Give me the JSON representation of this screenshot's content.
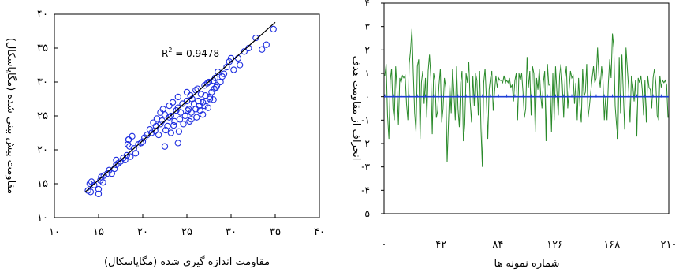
{
  "chart_data": [
    {
      "type": "scatter",
      "xlabel": "مقاومت اندازه گیری شده (مگاپاسکال)",
      "ylabel": "مقاومت پیش بینی شده (مگاپاسکال)",
      "xlim": [
        10,
        40
      ],
      "ylim": [
        10,
        40
      ],
      "x_ticks": [
        10,
        15,
        20,
        25,
        30,
        35,
        40
      ],
      "y_ticks": [
        10,
        15,
        20,
        25,
        30,
        35,
        40
      ],
      "x_tick_labels": [
        "۱۰",
        "۱۵",
        "۲۰",
        "۲۵",
        "۳۰",
        "۳۵",
        "۴۰"
      ],
      "y_tick_labels": [
        "۱۰",
        "۱۵",
        "۲۰",
        "۲۵",
        "۳۰",
        "۳۵",
        "۴۰"
      ],
      "annotation": {
        "r2_label": "R",
        "r2_sup": "2",
        "r2_value": " = 0.9478"
      },
      "fit_line": {
        "x": [
          13.5,
          35
        ],
        "y": [
          13.8,
          38.8
        ]
      },
      "points": {
        "x": [
          13.8,
          14.0,
          14.2,
          14.5,
          14.1,
          15.0,
          15.2,
          15.3,
          15.6,
          15.5,
          16.0,
          16.2,
          16.5,
          16.8,
          17.0,
          17.2,
          17.5,
          17.8,
          18.0,
          18.2,
          18.3,
          18.4,
          18.5,
          18.6,
          18.8,
          19.0,
          19.2,
          19.5,
          19.8,
          20.0,
          20.2,
          20.5,
          20.8,
          21.0,
          21.2,
          21.4,
          21.5,
          21.6,
          21.8,
          22.0,
          22.0,
          22.2,
          22.3,
          22.5,
          22.6,
          22.8,
          23.0,
          23.0,
          23.2,
          23.4,
          23.5,
          23.6,
          23.8,
          24.0,
          24.0,
          24.1,
          24.2,
          24.3,
          24.5,
          24.6,
          24.8,
          25.0,
          25.0,
          25.1,
          25.2,
          25.3,
          25.4,
          25.5,
          25.6,
          25.8,
          26.0,
          26.0,
          26.1,
          26.2,
          26.3,
          26.4,
          26.5,
          26.6,
          26.8,
          27.0,
          27.0,
          27.1,
          27.2,
          27.3,
          27.4,
          27.5,
          27.6,
          27.8,
          28.0,
          28.0,
          28.1,
          28.2,
          28.3,
          28.5,
          28.8,
          29.0,
          29.2,
          29.5,
          29.8,
          30.0,
          30.3,
          30.8,
          31.0,
          31.5,
          32.0,
          32.8,
          33.5,
          34.0,
          34.8,
          15.0,
          22.5,
          23.2,
          24.0,
          25.5,
          26.8,
          27.6,
          28.4,
          18.4,
          17.0
        ],
        "y": [
          14.0,
          15.0,
          15.3,
          14.8,
          13.8,
          13.5,
          15.5,
          16.0,
          16.2,
          15.2,
          16.5,
          17.0,
          16.5,
          17.2,
          17.8,
          18.0,
          18.3,
          18.8,
          18.5,
          19.2,
          20.8,
          21.5,
          20.5,
          19.0,
          22.0,
          20.2,
          19.5,
          20.8,
          21.0,
          21.2,
          21.8,
          22.2,
          23.0,
          22.5,
          24.0,
          22.8,
          23.5,
          24.6,
          22.2,
          25.5,
          23.8,
          24.3,
          26.0,
          25.2,
          22.9,
          23.5,
          24.8,
          26.5,
          25.0,
          27.0,
          23.6,
          24.2,
          25.8,
          26.2,
          27.8,
          22.7,
          24.5,
          25.5,
          26.8,
          23.8,
          25.0,
          27.2,
          28.5,
          25.8,
          26.0,
          24.2,
          28.0,
          25.5,
          27.5,
          26.8,
          28.8,
          26.0,
          24.8,
          29.0,
          27.2,
          26.5,
          25.8,
          28.2,
          27.0,
          29.5,
          26.5,
          28.0,
          27.2,
          29.8,
          26.2,
          30.0,
          27.8,
          28.5,
          30.2,
          27.4,
          29.0,
          30.6,
          29.2,
          31.5,
          30.0,
          30.8,
          31.2,
          32.2,
          33.0,
          33.5,
          31.8,
          33.5,
          32.5,
          34.5,
          35.0,
          36.5,
          34.8,
          35.5,
          37.8,
          14.2,
          20.5,
          22.5,
          21.0,
          24.5,
          25.2,
          27.5,
          29.5,
          21.5,
          18.5
        ]
      }
    },
    {
      "type": "line",
      "xlabel": "شماره نمونه ها",
      "ylabel": "انحراف از مقاومت هدف",
      "xlim": [
        0,
        210
      ],
      "ylim": [
        -5,
        4
      ],
      "x_ticks": [
        0,
        42,
        84,
        126,
        168,
        210
      ],
      "y_ticks": [
        -5,
        -4,
        -3,
        -2,
        -1,
        0,
        1,
        2,
        3,
        4
      ],
      "x_tick_labels": [
        "۰",
        "۴۲",
        "۸۴",
        "۱۲۶",
        "۱۶۸",
        "۲۱۰"
      ],
      "y_tick_labels": [
        "-۵",
        "-۴",
        "-۳",
        "-۲",
        "-۱",
        "۰",
        "۱",
        "۲",
        "۳",
        "۴"
      ],
      "colors": {
        "deviation": "#2a8a2a",
        "zero_line": "#1f3fd6"
      },
      "series": [
        {
          "values": [
            0.9,
            1.4,
            -0.8,
            -1.8,
            0.7,
            1.2,
            -0.5,
            -1.0,
            1.3,
            0.3,
            -1.2,
            0.8,
            0.6,
            0.9,
            0.8,
            0.9,
            -0.3,
            -1.0,
            1.4,
            2.0,
            2.9,
            1.0,
            -0.7,
            -1.5,
            1.3,
            1.6,
            -1.8,
            0.6,
            1.1,
            -0.3,
            0.8,
            -0.9,
            1.1,
            1.8,
            0.8,
            -1.6,
            1.0,
            0.7,
            -0.9,
            -0.6,
            0.5,
            1.2,
            -1.1,
            -0.5,
            0.8,
            0.4,
            -2.8,
            -1.1,
            0.5,
            -0.7,
            1.2,
            0.2,
            -1.0,
            1.3,
            -0.5,
            -1.3,
            0.6,
            1.1,
            -1.9,
            -1.2,
            1.0,
            0.6,
            1.5,
            -0.2,
            -1.1,
            0.9,
            -0.4,
            1.0,
            0.7,
            -0.8,
            1.1,
            -1.4,
            -3.0,
            0.6,
            1.2,
            -0.1,
            -1.8,
            0.3,
            0.8,
            1.1,
            -0.6,
            0.2,
            0.9,
            0.4,
            0.8,
            0.7,
            0.7,
            0.6,
            0.9,
            0.6,
            0.7,
            0.6,
            0.8,
            0.4,
            0.5,
            -0.2,
            0.7,
            1.0,
            -1.0,
            1.0,
            0.7,
            1.0,
            0.2,
            -0.9,
            -0.5,
            1.7,
            0.4,
            1.1,
            -0.8,
            1.3,
            1.0,
            -1.5,
            0.8,
            0.3,
            1.2,
            0.1,
            -0.5,
            0.6,
            1.1,
            -1.9,
            1.4,
            0.5,
            0.5,
            -1.5,
            1.0,
            -1.0,
            1.3,
            0.2,
            -0.8,
            0.9,
            1.4,
            0.5,
            -0.9,
            0.8,
            1.3,
            -0.5,
            0.3,
            1.1,
            0.8,
            0.9,
            -0.3,
            0.6,
            -1.0,
            0.8,
            -0.4,
            -1.1,
            1.2,
            0.0,
            0.2,
            1.4,
            -0.9,
            -0.4,
            0.2,
            0.8,
            1.3,
            0.6,
            0.8,
            2.1,
            0.9,
            0.4,
            1.3,
            0.7,
            -1.0,
            0.0,
            -1.0,
            0.6,
            1.6,
            0.8,
            2.7,
            2.1,
            -0.4,
            -1.2,
            -1.8,
            1.7,
            -0.7,
            1.8,
            0.2,
            -1.4,
            2.1,
            1.2,
            0.3,
            -1.1,
            0.9,
            0.5,
            -0.2,
            0.7,
            -1.7,
            0.8,
            0.6,
            0.9,
            0.3,
            -0.8,
            0.7,
            -1.1,
            0.9,
            0.4,
            0.3,
            -0.5,
            0.8,
            1.2,
            0.6,
            -0.8,
            -1.0,
            0.9,
            0.4,
            0.7,
            0.6,
            0.7,
            0.5,
            -0.9
          ]
        }
      ]
    }
  ]
}
